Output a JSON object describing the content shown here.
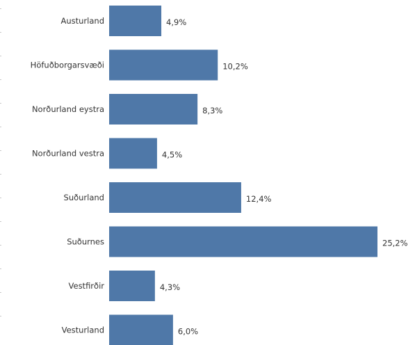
{
  "chart_data": {
    "type": "bar",
    "orientation": "horizontal",
    "categories": [
      "Austurland",
      "Höfuðborgarsvæði",
      "Norðurland eystra",
      "Norðurland vestra",
      "Suðurland",
      "Suðurnes",
      "Vestfirðir",
      "Vesturland"
    ],
    "values": [
      4.9,
      10.2,
      8.3,
      4.5,
      12.4,
      25.2,
      4.3,
      6.0
    ],
    "value_labels": [
      "4,9%",
      "10,2%",
      "8,3%",
      "4,5%",
      "12,4%",
      "25,2%",
      "4,3%",
      "6,0%"
    ],
    "xlim": [
      0,
      25.2
    ],
    "bar_color": "#4f78a8",
    "grid": false,
    "legend": "none"
  }
}
